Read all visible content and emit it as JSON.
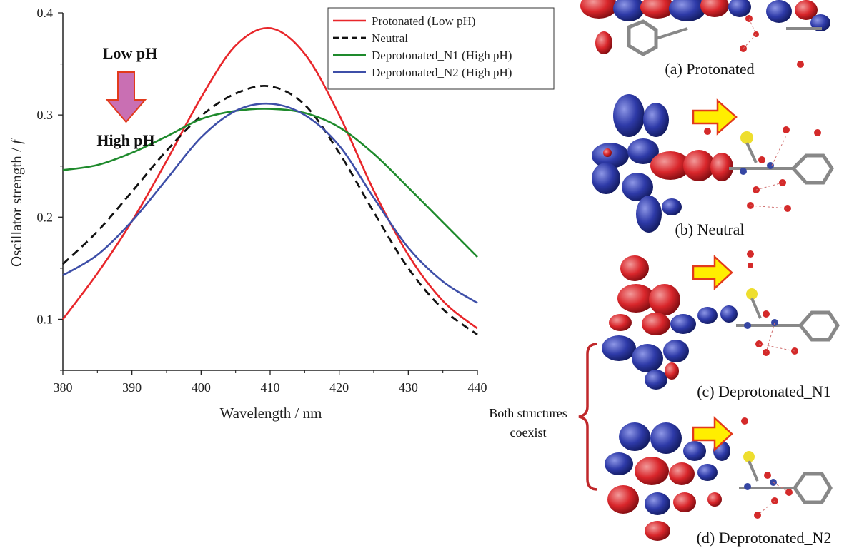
{
  "chart_data": {
    "type": "line",
    "xlabel": "Wavelength / nm",
    "ylabel": "Oscillator strength / f",
    "xlim": [
      380,
      440
    ],
    "ylim": [
      0.05,
      0.4
    ],
    "xticks": [
      380,
      390,
      400,
      410,
      420,
      430,
      440
    ],
    "yticks": [
      0.1,
      0.2,
      0.3,
      0.4
    ],
    "grid": false,
    "legend_position": "top-right",
    "series": [
      {
        "name": "Protonated (Low pH)",
        "color": "#e8262a",
        "dash": "solid",
        "x": [
          380,
          385,
          390,
          395,
          400,
          405,
          410,
          415,
          420,
          425,
          430,
          435,
          440
        ],
        "y": [
          0.1,
          0.145,
          0.196,
          0.255,
          0.317,
          0.368,
          0.385,
          0.36,
          0.3,
          0.226,
          0.163,
          0.118,
          0.091
        ]
      },
      {
        "name": "Neutral",
        "color": "#111111",
        "dash": "dashed",
        "x": [
          380,
          385,
          390,
          395,
          400,
          405,
          410,
          415,
          420,
          425,
          430,
          435,
          440
        ],
        "y": [
          0.154,
          0.186,
          0.225,
          0.265,
          0.299,
          0.321,
          0.328,
          0.31,
          0.263,
          0.205,
          0.15,
          0.11,
          0.085
        ]
      },
      {
        "name": "Deprotonated_N1 (High pH)",
        "color": "#1e8a2c",
        "dash": "solid",
        "x": [
          380,
          385,
          390,
          395,
          400,
          405,
          410,
          415,
          420,
          425,
          430,
          435,
          440
        ],
        "y": [
          0.246,
          0.251,
          0.263,
          0.279,
          0.296,
          0.304,
          0.306,
          0.302,
          0.288,
          0.262,
          0.229,
          0.195,
          0.161
        ]
      },
      {
        "name": "Deprotonated_N2 (High pH)",
        "color": "#3e4fa8",
        "dash": "solid",
        "x": [
          380,
          385,
          390,
          395,
          400,
          405,
          410,
          415,
          420,
          425,
          430,
          435,
          440
        ],
        "y": [
          0.143,
          0.163,
          0.196,
          0.237,
          0.278,
          0.304,
          0.311,
          0.3,
          0.27,
          0.219,
          0.17,
          0.137,
          0.116
        ]
      }
    ],
    "annotations": {
      "low_ph": "Low pH",
      "high_ph": "High pH"
    }
  },
  "panels": {
    "a": "(a) Protonated",
    "b": "(b) Neutral",
    "c": "(c) Deprotonated_N1",
    "d": "(d) Deprotonated_N2"
  },
  "bracket": {
    "line1": "Both structures",
    "line2": "coexist"
  },
  "colors": {
    "orbital_red": "#d9262b",
    "orbital_blue": "#2e3aa8",
    "arrow_yellow": "#ffee00",
    "arrow_outline": "#e23a1c",
    "bracket": "#c0282b",
    "ph_arrow": "#c96fb3"
  }
}
